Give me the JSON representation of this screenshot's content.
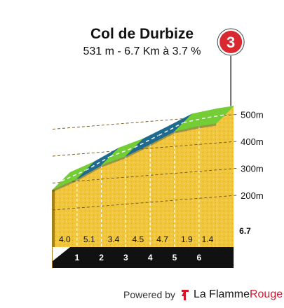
{
  "chart_data": {
    "type": "area",
    "title": "Col de Durbize",
    "subtitle": "531 m - 6.7 Km à 3.7 %",
    "category_badge": "3",
    "x_unit": "km",
    "y_unit": "m",
    "km_markers": [
      "1",
      "2",
      "3",
      "4",
      "5",
      "6"
    ],
    "km_values": [
      1,
      2,
      3,
      4,
      5,
      6
    ],
    "end_label": "6.7",
    "total_km": 6.7,
    "y_ticks": [
      {
        "value": 200,
        "label": "200m"
      },
      {
        "value": 300,
        "label": "300m"
      },
      {
        "value": 400,
        "label": "400m"
      },
      {
        "value": 500,
        "label": "500m"
      }
    ],
    "ylim": [
      100,
      540
    ],
    "segments": [
      {
        "from_km": 0,
        "to_km": 1,
        "gradient": 4.0,
        "label": "4.0",
        "color": "#74cc36"
      },
      {
        "from_km": 1,
        "to_km": 2,
        "gradient": 5.1,
        "label": "5.1",
        "color": "#1e6b8f"
      },
      {
        "from_km": 2,
        "to_km": 3,
        "gradient": 3.4,
        "label": "3.4",
        "color": "#74cc36"
      },
      {
        "from_km": 3,
        "to_km": 4,
        "gradient": 4.5,
        "label": "4.5",
        "color": "#1e6b8f"
      },
      {
        "from_km": 4,
        "to_km": 5,
        "gradient": 4.7,
        "label": "4.7",
        "color": "#1e6b8f"
      },
      {
        "from_km": 5,
        "to_km": 6,
        "gradient": 1.9,
        "label": "1.9",
        "color": "#74cc36"
      },
      {
        "from_km": 6,
        "to_km": 6.7,
        "gradient": 1.4,
        "label": "1.4",
        "color": "#74cc36"
      }
    ],
    "colors": {
      "surface": "#f2c63a",
      "side": "#a37f1e",
      "base": "#111111",
      "grid": "#6b5416",
      "badge": "#d9282f"
    }
  },
  "footer": {
    "powered_by": "Powered by",
    "brand_first": "La Flamme",
    "brand_second": "Rouge"
  }
}
